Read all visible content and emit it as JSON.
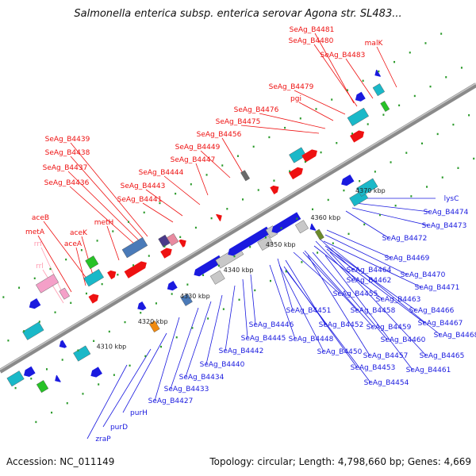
{
  "title": "Salmonella enterica subsp. enterica serovar Agona str. SL483...",
  "footer": {
    "accession": "Accession: NC_011149",
    "topology": "Topology: circular; Length: 4,798,660 bp; Genes: 4,669"
  },
  "colors": {
    "forward_label": "#ee1111",
    "reverse_label": "#1a1adf",
    "rrna_label": "#ff9ab0",
    "backbone": "#8a8a8a"
  },
  "ruler": [
    "4310 kbp",
    "4320 kbp",
    "4330 kbp",
    "4340 kbp",
    "4350 kbp",
    "4360 kbp",
    "4370 kbp"
  ],
  "top_labels": [
    "SeAg_B4481",
    "SeAg_B4480",
    "SeAg_B4483",
    "malK",
    "SeAg_B4479",
    "pgi",
    "SeAg_B4476",
    "SeAg_B4475",
    "SeAg_B4456",
    "SeAg_B4449",
    "SeAg_B4447",
    "SeAg_B4444",
    "SeAg_B4443",
    "SeAg_B4441",
    "SeAg_B4439",
    "SeAg_B4438",
    "SeAg_B4437",
    "SeAg_B4436",
    "metH",
    "aceB",
    "metA",
    "aceK",
    "aceA",
    "rrf",
    "rrl"
  ],
  "bottom_labels": [
    "lysC",
    "SeAg_B4474",
    "SeAg_B4473",
    "SeAg_B4472",
    "SeAg_B4469",
    "SeAg_B4470",
    "SeAg_B4464",
    "SeAg_B4462",
    "SeAg_B4471",
    "SeAg_B4455",
    "SeAg_B4463",
    "SeAg_B4451",
    "SeAg_B4458",
    "SeAg_B4466",
    "SeAg_B4446",
    "SeAg_B4452",
    "SeAg_B4459",
    "SeAg_B4467",
    "SeAg_B4445",
    "SeAg_B4448",
    "SeAg_B4460",
    "SeAg_B4468",
    "SeAg_B4442",
    "SeAg_B4450",
    "SeAg_B4457",
    "SeAg_B4465",
    "SeAg_B4440",
    "SeAg_B4453",
    "SeAg_B4461",
    "SeAg_B4434",
    "SeAg_B4454",
    "SeAg_B4433",
    "SeAg_B4427",
    "purH",
    "purD",
    "zraP"
  ]
}
